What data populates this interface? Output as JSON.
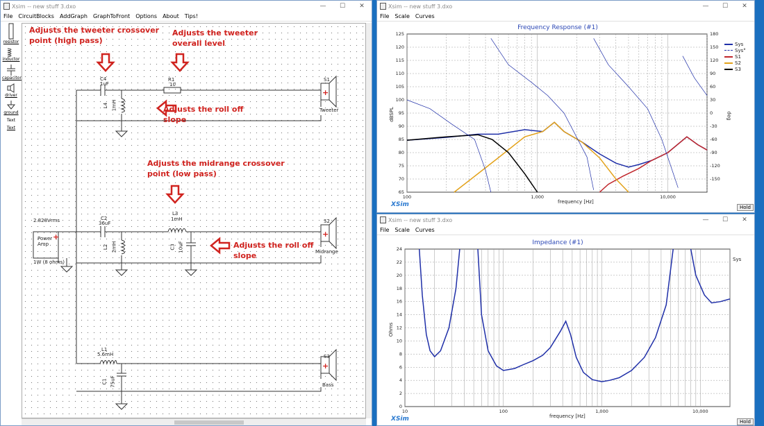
{
  "xsim": {
    "title": "Xsim -- new stuff 3.dxo",
    "menu": [
      "File",
      "CircuitBlocks",
      "AddGraph",
      "GraphToFront",
      "Options",
      "About",
      "Tips!"
    ],
    "palette": [
      "resistor",
      "inductor",
      "capacitor",
      "driver",
      "ground",
      "Text",
      "Text"
    ],
    "components": {
      "c4": "C4",
      "c4v": "1uF",
      "r1": "R1",
      "r1v": "10",
      "s1": "S1",
      "l4": "L4",
      "l4v": "1mH",
      "tweeter": "Tweeter",
      "source_v": "2.828Vrms",
      "power": "Power",
      "amp": "Amp",
      "source_w": "1W (8 ohms)",
      "c2": "C2",
      "c2v": "36uF",
      "l3": "L3",
      "l3v": "1mH",
      "l2": "L2",
      "l2v": "2mH",
      "c3": "C3",
      "c3v": "10uF",
      "s2": "S2",
      "midrange": "Midrange",
      "l1": "L1",
      "l1v": "5.6mH",
      "c1": "C1",
      "c1v": "75uF",
      "s3": "S3",
      "bass": "Bass"
    },
    "notes": {
      "n1": "Adjusts the tweeter crossover point (high pass)",
      "n2": "Adjusts the tweeter overall level",
      "n3": "Adjusts the roll off slope",
      "n4": "Adjusts the midrange crossover point (low pass)",
      "n5": "Adjusts the roll off slope"
    }
  },
  "fr": {
    "wintitle": "Xsim -- new stuff 3.dxo",
    "menu": [
      "File",
      "Scale",
      "Curves"
    ],
    "title": "Frequency Response (#1)",
    "yleft": [
      "125",
      "120",
      "115",
      "110",
      "105",
      "100",
      "95",
      "90",
      "85",
      "80",
      "75",
      "70",
      "65"
    ],
    "yright": [
      "180",
      "150",
      "120",
      "90",
      "60",
      "30",
      "0",
      "-30",
      "-60",
      "-90",
      "-120",
      "-150"
    ],
    "xticks": [
      "100",
      "1,000",
      "10,000"
    ],
    "ylabel": "dBSPL",
    "yrlabel": "deg",
    "xlabel": "frequency [Hz]",
    "brand": "XSim",
    "hold": "Hold",
    "legend": [
      {
        "name": "Sys",
        "color": "#1f2fa8"
      },
      {
        "name": "Sys°",
        "color": "#1f2fa8"
      },
      {
        "name": "S1",
        "color": "#c0262b"
      },
      {
        "name": "S2",
        "color": "#e3a21a"
      },
      {
        "name": "S3",
        "color": "#000000"
      }
    ]
  },
  "imp": {
    "wintitle": "Xsim -- new stuff 3.dxo",
    "menu": [
      "File",
      "Scale",
      "Curves"
    ],
    "title": "Impedance (#1)",
    "yticks": [
      "24",
      "22",
      "20",
      "18",
      "16",
      "14",
      "12",
      "10",
      "8",
      "6",
      "4",
      "2",
      "0"
    ],
    "xticks": [
      "10",
      "100",
      "1,000",
      "10,000"
    ],
    "ylabel": "Ohms",
    "xlabel": "frequency [Hz]",
    "brand": "XSim",
    "hold": "Hold",
    "legend": [
      {
        "name": "Sys",
        "color": "#1f2fa8"
      }
    ]
  }
}
